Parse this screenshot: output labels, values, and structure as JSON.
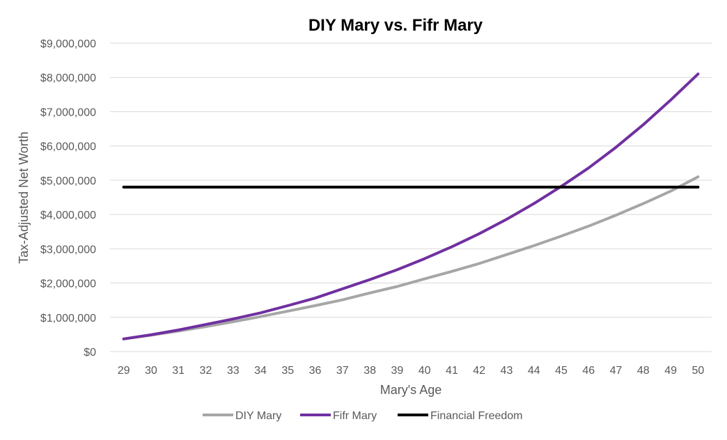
{
  "chart_data": {
    "type": "line",
    "title": "DIY Mary vs. Fifr Mary",
    "xlabel": "Mary's Age",
    "ylabel": "Tax-Adjusted Net Worth",
    "x": [
      29,
      30,
      31,
      32,
      33,
      34,
      35,
      36,
      37,
      38,
      39,
      40,
      41,
      42,
      43,
      44,
      45,
      46,
      47,
      48,
      49,
      50
    ],
    "ylim": [
      0,
      9000000
    ],
    "yticks": [
      0,
      1000000,
      2000000,
      3000000,
      4000000,
      5000000,
      6000000,
      7000000,
      8000000,
      9000000
    ],
    "ytick_labels": [
      "$0",
      "$1,000,000",
      "$2,000,000",
      "$3,000,000",
      "$4,000,000",
      "$5,000,000",
      "$6,000,000",
      "$7,000,000",
      "$8,000,000",
      "$9,000,000"
    ],
    "grid": "horizontal",
    "legend_position": "bottom-center",
    "series": [
      {
        "name": "DIY Mary",
        "color": "#A6A6A6",
        "values": [
          370000,
          480000,
          600000,
          730000,
          870000,
          1020000,
          1180000,
          1340000,
          1510000,
          1710000,
          1900000,
          2120000,
          2340000,
          2570000,
          2830000,
          3090000,
          3370000,
          3660000,
          3980000,
          4320000,
          4680000,
          5100000
        ]
      },
      {
        "name": "Fifr Mary",
        "color": "#7030A0",
        "values": [
          370000,
          490000,
          630000,
          790000,
          950000,
          1130000,
          1340000,
          1560000,
          1830000,
          2100000,
          2390000,
          2710000,
          3060000,
          3440000,
          3860000,
          4320000,
          4820000,
          5360000,
          5960000,
          6620000,
          7340000,
          8100000
        ]
      },
      {
        "name": "Financial Freedom",
        "color": "#000000",
        "values": [
          4800000,
          4800000,
          4800000,
          4800000,
          4800000,
          4800000,
          4800000,
          4800000,
          4800000,
          4800000,
          4800000,
          4800000,
          4800000,
          4800000,
          4800000,
          4800000,
          4800000,
          4800000,
          4800000,
          4800000,
          4800000,
          4800000
        ]
      }
    ]
  }
}
